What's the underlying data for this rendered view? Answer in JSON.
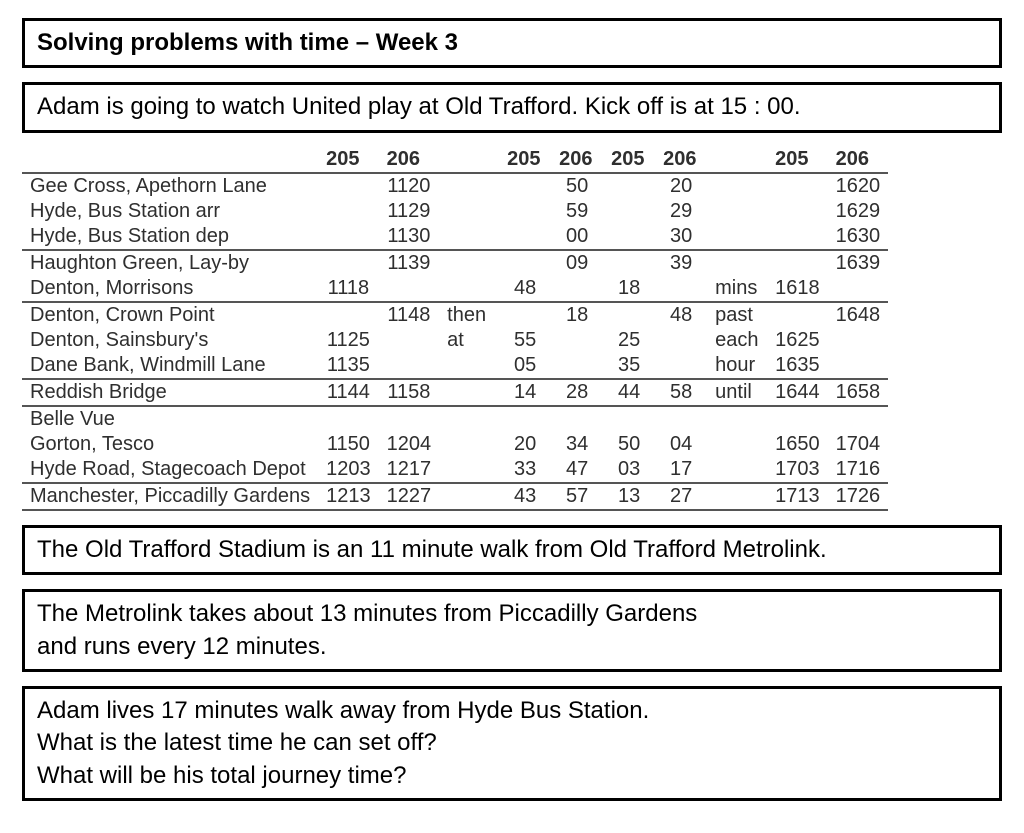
{
  "title": "Solving problems with time – Week 3",
  "scenario": "Adam is going to watch United play at Old Trafford. Kick off is at 15 : 00.",
  "info1": "The Old Trafford Stadium is an 11 minute walk from Old Trafford Metrolink.",
  "info2_l1": "The Metrolink takes about 13 minutes from Piccadilly Gardens",
  "info2_l2": "and runs every 12 minutes.",
  "q_l1": "Adam lives 17 minutes walk away from Hyde Bus Station.",
  "q_l2": "What is the latest time he can set off?",
  "q_l3": "What will be his total journey time?",
  "timetable": {
    "routes": [
      "205",
      "206",
      "",
      "205",
      "206",
      "205",
      "206",
      "",
      "205",
      "206"
    ],
    "note_col7": [
      "mins",
      "past",
      "each",
      "hour",
      "until"
    ],
    "interword": [
      "then",
      "at"
    ],
    "rows": [
      {
        "stop": "Gee Cross, Apethorn Lane",
        "c": [
          "",
          "1120",
          "",
          "",
          "50",
          "",
          "20",
          "",
          "",
          "1620"
        ]
      },
      {
        "stop": "Hyde, Bus Station arr",
        "c": [
          "",
          "1129",
          "",
          "",
          "59",
          "",
          "29",
          "",
          "",
          "1629"
        ]
      },
      {
        "stop": "Hyde, Bus Station dep",
        "c": [
          "",
          "1130",
          "",
          "",
          "00",
          "",
          "30",
          "",
          "",
          "1630"
        ]
      },
      {
        "stop": "Haughton Green, Lay-by",
        "c": [
          "",
          "1139",
          "",
          "",
          "09",
          "",
          "39",
          "",
          "",
          "1639"
        ]
      },
      {
        "stop": "Denton, Morrisons",
        "c": [
          "1118",
          "",
          "",
          "48",
          "",
          "18",
          "",
          "mins",
          "1618",
          ""
        ]
      },
      {
        "stop": "Denton, Crown Point",
        "c": [
          "",
          "1148",
          "then",
          "",
          "18",
          "",
          "48",
          "past",
          "",
          "1648"
        ]
      },
      {
        "stop": "Denton, Sainsbury's",
        "c": [
          "1125",
          "",
          "at",
          "55",
          "",
          "25",
          "",
          "each",
          "1625",
          ""
        ]
      },
      {
        "stop": "Dane Bank, Windmill Lane",
        "c": [
          "1135",
          "",
          "",
          "05",
          "",
          "35",
          "",
          "hour",
          "1635",
          ""
        ]
      },
      {
        "stop": "Reddish Bridge",
        "c": [
          "1144",
          "1158",
          "",
          "14",
          "28",
          "44",
          "58",
          "until",
          "1644",
          "1658"
        ]
      },
      {
        "stop": "Belle Vue",
        "c": [
          "",
          "",
          "",
          "",
          "",
          "",
          "",
          "",
          "",
          ""
        ]
      },
      {
        "stop": "Gorton, Tesco",
        "c": [
          "1150",
          "1204",
          "",
          "20",
          "34",
          "50",
          "04",
          "",
          "1650",
          "1704"
        ]
      },
      {
        "stop": "Hyde Road, Stagecoach Depot",
        "c": [
          "1203",
          "1217",
          "",
          "33",
          "47",
          "03",
          "17",
          "",
          "1703",
          "1716"
        ]
      },
      {
        "stop": "Manchester, Piccadilly Gardens",
        "c": [
          "1213",
          "1227",
          "",
          "43",
          "57",
          "13",
          "27",
          "",
          "1713",
          "1726"
        ]
      }
    ],
    "rule_after": [
      4,
      6,
      9,
      10,
      13
    ]
  },
  "style": {
    "border_color": "#000000",
    "table_text_color": "#2f2f2f",
    "rule_color": "#555555",
    "background": "#ffffff",
    "box_fontsize": 24,
    "table_fontsize": 20
  }
}
